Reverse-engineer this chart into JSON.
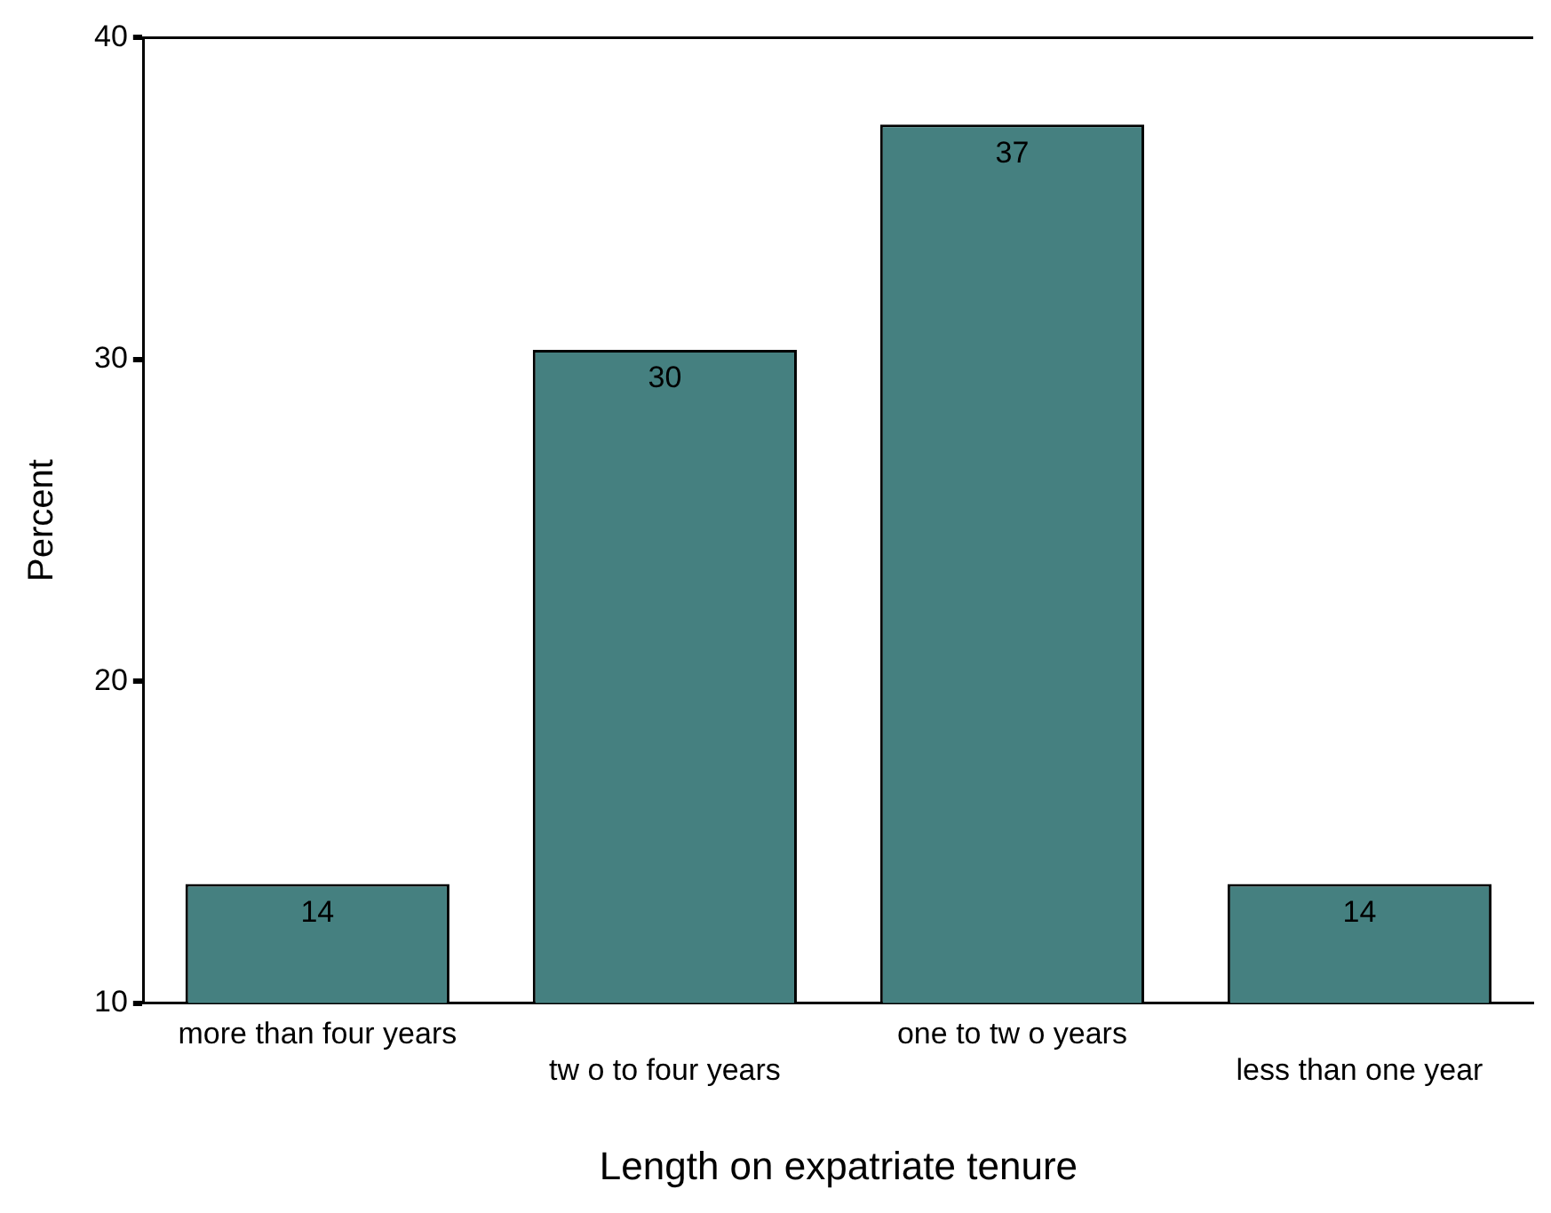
{
  "chart_data": {
    "type": "bar",
    "xlabel": "Length on expatriate tenure",
    "ylabel": "Percent",
    "categories": [
      "more than four years",
      "tw o to four years",
      "one to tw o years",
      "less than one year"
    ],
    "values": [
      13.7,
      30.3,
      37.3,
      13.7
    ],
    "value_labels": [
      "14",
      "30",
      "37",
      "14"
    ],
    "color": "#458080",
    "ylim": [
      10,
      40
    ],
    "yticks": [
      10,
      20,
      30,
      40
    ],
    "grid": false,
    "legend": false
  }
}
